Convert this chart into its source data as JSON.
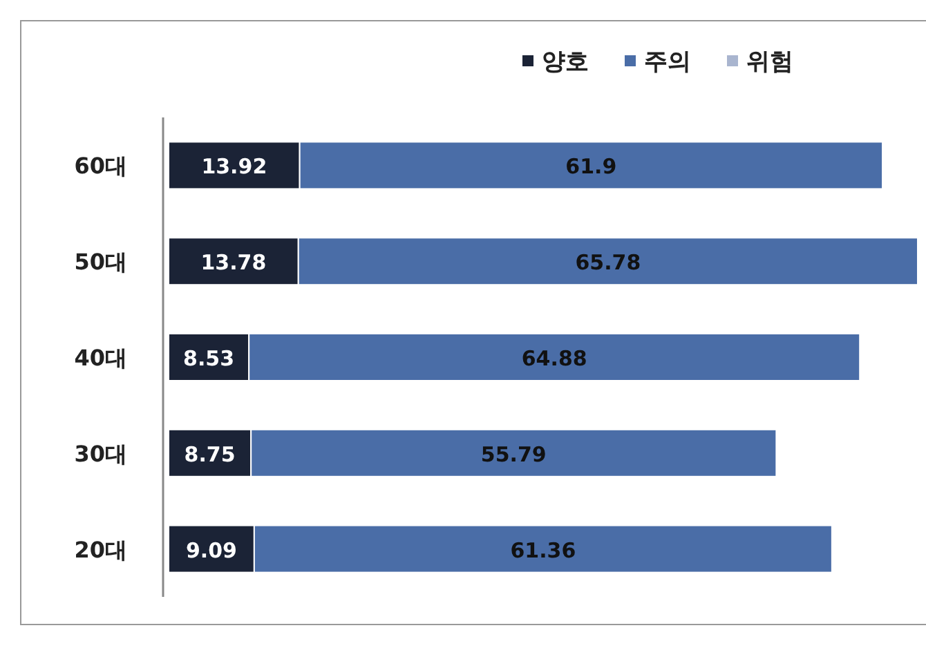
{
  "chart_data": {
    "type": "bar",
    "orientation": "horizontal",
    "stacked": true,
    "data_labels": true,
    "legend": "top right",
    "categories": [
      "60대",
      "50대",
      "40대",
      "30대",
      "20대"
    ],
    "series": [
      {
        "name": "양호",
        "color": "#1b2336",
        "values": [
          13.92,
          13.78,
          8.53,
          8.75,
          9.09
        ]
      },
      {
        "name": "주의",
        "color": "#4a6da7",
        "values": [
          61.9,
          65.78,
          64.88,
          55.79,
          61.36
        ]
      },
      {
        "name": "위험",
        "color": "#a9b5cf",
        "values": [
          null,
          null,
          null,
          null,
          null
        ]
      }
    ]
  }
}
